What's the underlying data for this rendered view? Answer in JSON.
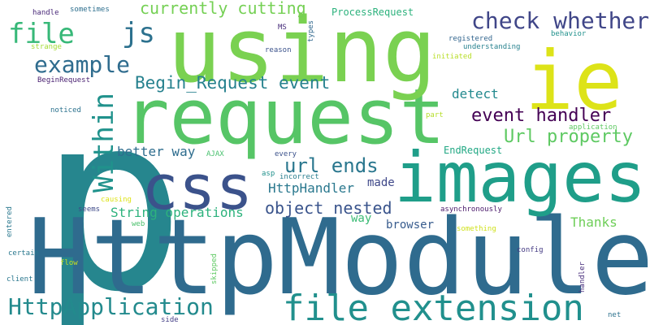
{
  "words": [
    {
      "text": "p",
      "color": "#26868e"
    },
    {
      "text": "HttpModule",
      "color": "#2f6b8e"
    },
    {
      "text": "request",
      "color": "#56c566"
    },
    {
      "text": "using",
      "color": "#7ad151"
    },
    {
      "text": "images",
      "color": "#1f9e89"
    },
    {
      "text": "ie",
      "color": "#dde318"
    },
    {
      "text": "css",
      "color": "#3b528b"
    },
    {
      "text": "file extension",
      "color": "#21908d"
    },
    {
      "text": "check whether",
      "color": "#404688"
    },
    {
      "text": "file",
      "color": "#37b878"
    },
    {
      "text": "js",
      "color": "#2c718e"
    },
    {
      "text": "example",
      "color": "#2f6c8e"
    },
    {
      "text": "HttpApplication",
      "color": "#238a8d"
    },
    {
      "text": "Within",
      "color": "#20928c"
    },
    {
      "text": "Begin_Request event",
      "color": "#26818e"
    },
    {
      "text": "event handler",
      "color": "#440154"
    },
    {
      "text": "Url property",
      "color": "#5ec962"
    },
    {
      "text": "url ends",
      "color": "#2a778e"
    },
    {
      "text": "object nested",
      "color": "#3a548c"
    },
    {
      "text": "currently cutting",
      "color": "#75d054"
    },
    {
      "text": "String operations",
      "color": "#2db27d"
    },
    {
      "text": "better way",
      "color": "#2e6d8e"
    },
    {
      "text": "HttpHandler",
      "color": "#2a788e"
    },
    {
      "text": "detect",
      "color": "#23898e"
    },
    {
      "text": "Thanks",
      "color": "#6ece58"
    },
    {
      "text": "browser",
      "color": "#375b8d"
    },
    {
      "text": "way",
      "color": "#3bbb75"
    },
    {
      "text": "made",
      "color": "#3f4889"
    },
    {
      "text": "ProcessRequest",
      "color": "#2db27d"
    },
    {
      "text": "EndRequest",
      "color": "#22a884"
    },
    {
      "text": "asynchronously",
      "color": "#481769"
    },
    {
      "text": "registered",
      "color": "#32658e"
    },
    {
      "text": "understanding",
      "color": "#26818e"
    },
    {
      "text": "initiated",
      "color": "#b8de29"
    },
    {
      "text": "behavior",
      "color": "#21918c"
    },
    {
      "text": "MS",
      "color": "#472c7a"
    },
    {
      "text": "types",
      "color": "#31688e"
    },
    {
      "text": "reason",
      "color": "#3b528b"
    },
    {
      "text": "handle",
      "color": "#482878"
    },
    {
      "text": "sometimes",
      "color": "#2e6f8e"
    },
    {
      "text": "strange",
      "color": "#a5db36"
    },
    {
      "text": "BeginRequest",
      "color": "#481f70"
    },
    {
      "text": "noticed",
      "color": "#2c728e"
    },
    {
      "text": "part",
      "color": "#b5de2b"
    },
    {
      "text": "application",
      "color": "#5ec962"
    },
    {
      "text": "every",
      "color": "#3b528b"
    },
    {
      "text": "AJAX",
      "color": "#48c16e"
    },
    {
      "text": "asp",
      "color": "#21918c"
    },
    {
      "text": "incorrect",
      "color": "#287d8e"
    },
    {
      "text": "causing",
      "color": "#dde318"
    },
    {
      "text": "seems",
      "color": "#3e4a89"
    },
    {
      "text": "web",
      "color": "#4ac16d"
    },
    {
      "text": "something",
      "color": "#d0e11c"
    },
    {
      "text": "config",
      "color": "#443a83"
    },
    {
      "text": "entered",
      "color": "#2a788e"
    },
    {
      "text": "certain",
      "color": "#2a788e"
    },
    {
      "text": "flow",
      "color": "#c2df23"
    },
    {
      "text": "skipped",
      "color": "#5ec962"
    },
    {
      "text": "client",
      "color": "#2a778e"
    },
    {
      "text": "handler",
      "color": "#472d7b"
    },
    {
      "text": "side",
      "color": "#433e85"
    },
    {
      "text": "net",
      "color": "#2c728e"
    }
  ]
}
